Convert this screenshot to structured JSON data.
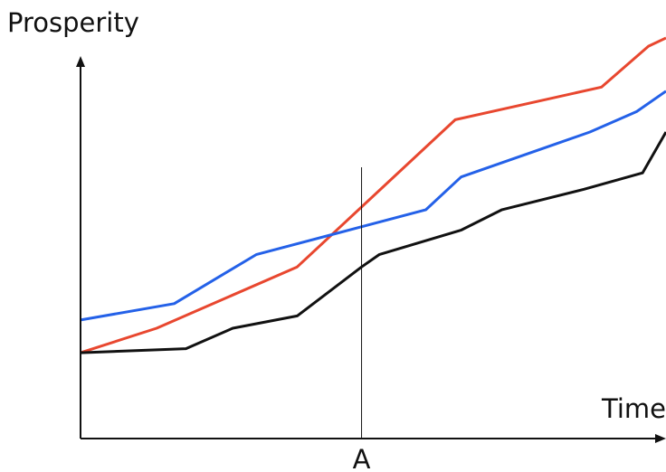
{
  "chart_data": {
    "type": "line",
    "title": "",
    "xlabel": "Time",
    "ylabel": "Prosperity",
    "xlim": [
      0,
      100
    ],
    "ylim": [
      0,
      100
    ],
    "grid": false,
    "legend": "none",
    "annotations": [
      {
        "type": "vline",
        "x": 48,
        "label": "A"
      }
    ],
    "series": [
      {
        "color": "#e8472f",
        "points": [
          [
            0,
            21
          ],
          [
            13,
            27
          ],
          [
            37,
            42
          ],
          [
            64,
            78
          ],
          [
            89,
            86
          ],
          [
            97,
            96
          ],
          [
            100,
            98
          ]
        ]
      },
      {
        "color": "#2461e8",
        "points": [
          [
            0,
            29
          ],
          [
            16,
            33
          ],
          [
            30,
            45
          ],
          [
            59,
            56
          ],
          [
            65,
            64
          ],
          [
            81,
            72
          ],
          [
            87,
            75
          ],
          [
            95,
            80
          ],
          [
            100,
            85
          ]
        ]
      },
      {
        "color": "#111111",
        "points": [
          [
            0,
            21
          ],
          [
            18,
            22
          ],
          [
            26,
            27
          ],
          [
            37,
            30
          ],
          [
            48,
            42
          ],
          [
            51,
            45
          ],
          [
            65,
            51
          ],
          [
            72,
            56
          ],
          [
            86,
            61
          ],
          [
            96,
            65
          ],
          [
            100,
            75
          ]
        ]
      }
    ]
  }
}
